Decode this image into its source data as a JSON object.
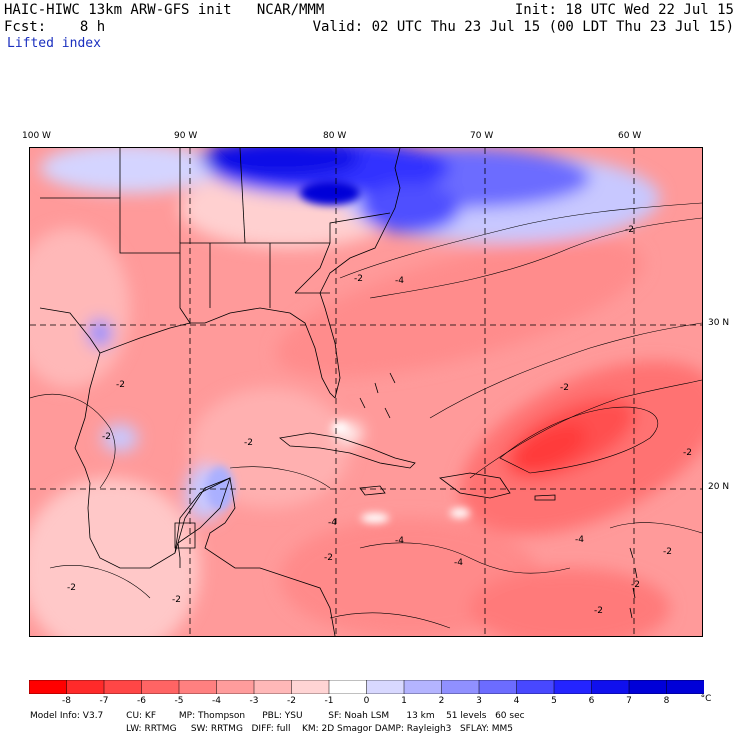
{
  "header": {
    "line1_left": "HAIC-HIWC 13km ARW-GFS init   NCAR/MMM",
    "line1_right": "Init: 18 UTC Wed 22 Jul 15",
    "line2_left": "Fcst:    8 h",
    "line2_right": "Valid: 02 UTC Thu 23 Jul 15 (00 LDT Thu 23 Jul 15)",
    "field": "Lifted index"
  },
  "axes": {
    "lon_labels": [
      "100 W",
      "90 W",
      "80 W",
      "70 W",
      "60 W"
    ],
    "lat_labels": [
      "30 N",
      "20 N"
    ]
  },
  "colorbar": {
    "labels": [
      "-8",
      "-7",
      "-6",
      "-5",
      "-4",
      "-3",
      "-2",
      "-1",
      "0",
      "1",
      "2",
      "3",
      "4",
      "5",
      "6",
      "7",
      "8"
    ],
    "unit": "°C",
    "colors": [
      "#ff0000",
      "#ff2a2a",
      "#ff4646",
      "#ff6464",
      "#ff8080",
      "#ff9c9c",
      "#ffb8b8",
      "#ffd4d4",
      "#ffffff",
      "#d8d8ff",
      "#b4b4ff",
      "#9090ff",
      "#6c6cff",
      "#4848ff",
      "#2424ff",
      "#1010ee",
      "#0000d8"
    ]
  },
  "contour_labels": [
    "-2",
    "-2",
    "-2",
    "-2",
    "-2",
    "-2",
    "-2",
    "-4",
    "-4",
    "-4",
    "-4",
    "-4",
    "-2",
    "-2",
    "-2",
    "-2",
    "-2",
    "-2"
  ],
  "footer": {
    "line1": "Model Info: V3.7        CU: KF        MP: Thompson      PBL: YSU         SF: Noah LSM      13 km    51 levels   60 sec",
    "line2": "LW: RRTMG     SW: RRTMG   DIFF: full    KM: 2D Smagor DAMP: Rayleigh3   SFLAY: MM5"
  }
}
